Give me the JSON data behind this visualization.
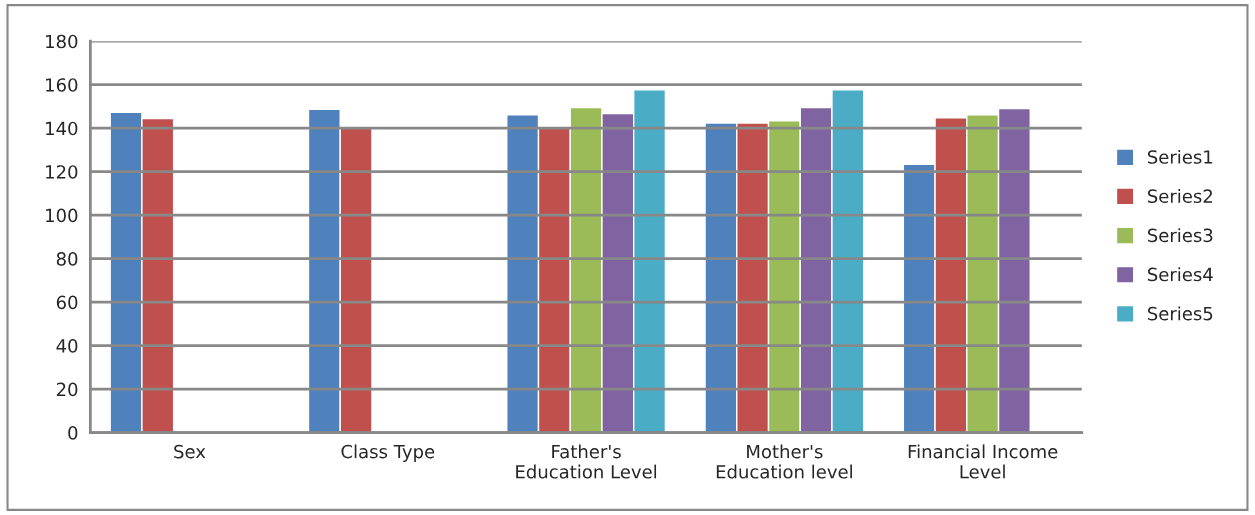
{
  "chart_data": {
    "type": "bar",
    "categories": [
      "Sex",
      "Class Type",
      "Father's\nEducation Level",
      "Mother's\nEducation level",
      "Financial Income\nLevel"
    ],
    "series": [
      {
        "name": "Series1",
        "color": "#4f81bd",
        "values": [
          147.3,
          148.7,
          146.2,
          142.4,
          123.4
        ]
      },
      {
        "name": "Series2",
        "color": "#c0504d",
        "values": [
          144.4,
          140,
          140,
          142.4,
          144.8
        ]
      },
      {
        "name": "Series3",
        "color": "#9bbb59",
        "values": [
          null,
          null,
          149.5,
          143.4,
          146.2
        ]
      },
      {
        "name": "Series4",
        "color": "#8064a2",
        "values": [
          null,
          null,
          146.7,
          149.5,
          149
        ]
      },
      {
        "name": "Series5",
        "color": "#4bacc6",
        "values": [
          null,
          null,
          157.7,
          157.7,
          null
        ]
      }
    ],
    "ylim": [
      0,
      180
    ],
    "yticks": [
      0,
      20,
      40,
      60,
      80,
      100,
      120,
      140,
      160,
      180
    ],
    "grid": "y",
    "legend": "right"
  }
}
